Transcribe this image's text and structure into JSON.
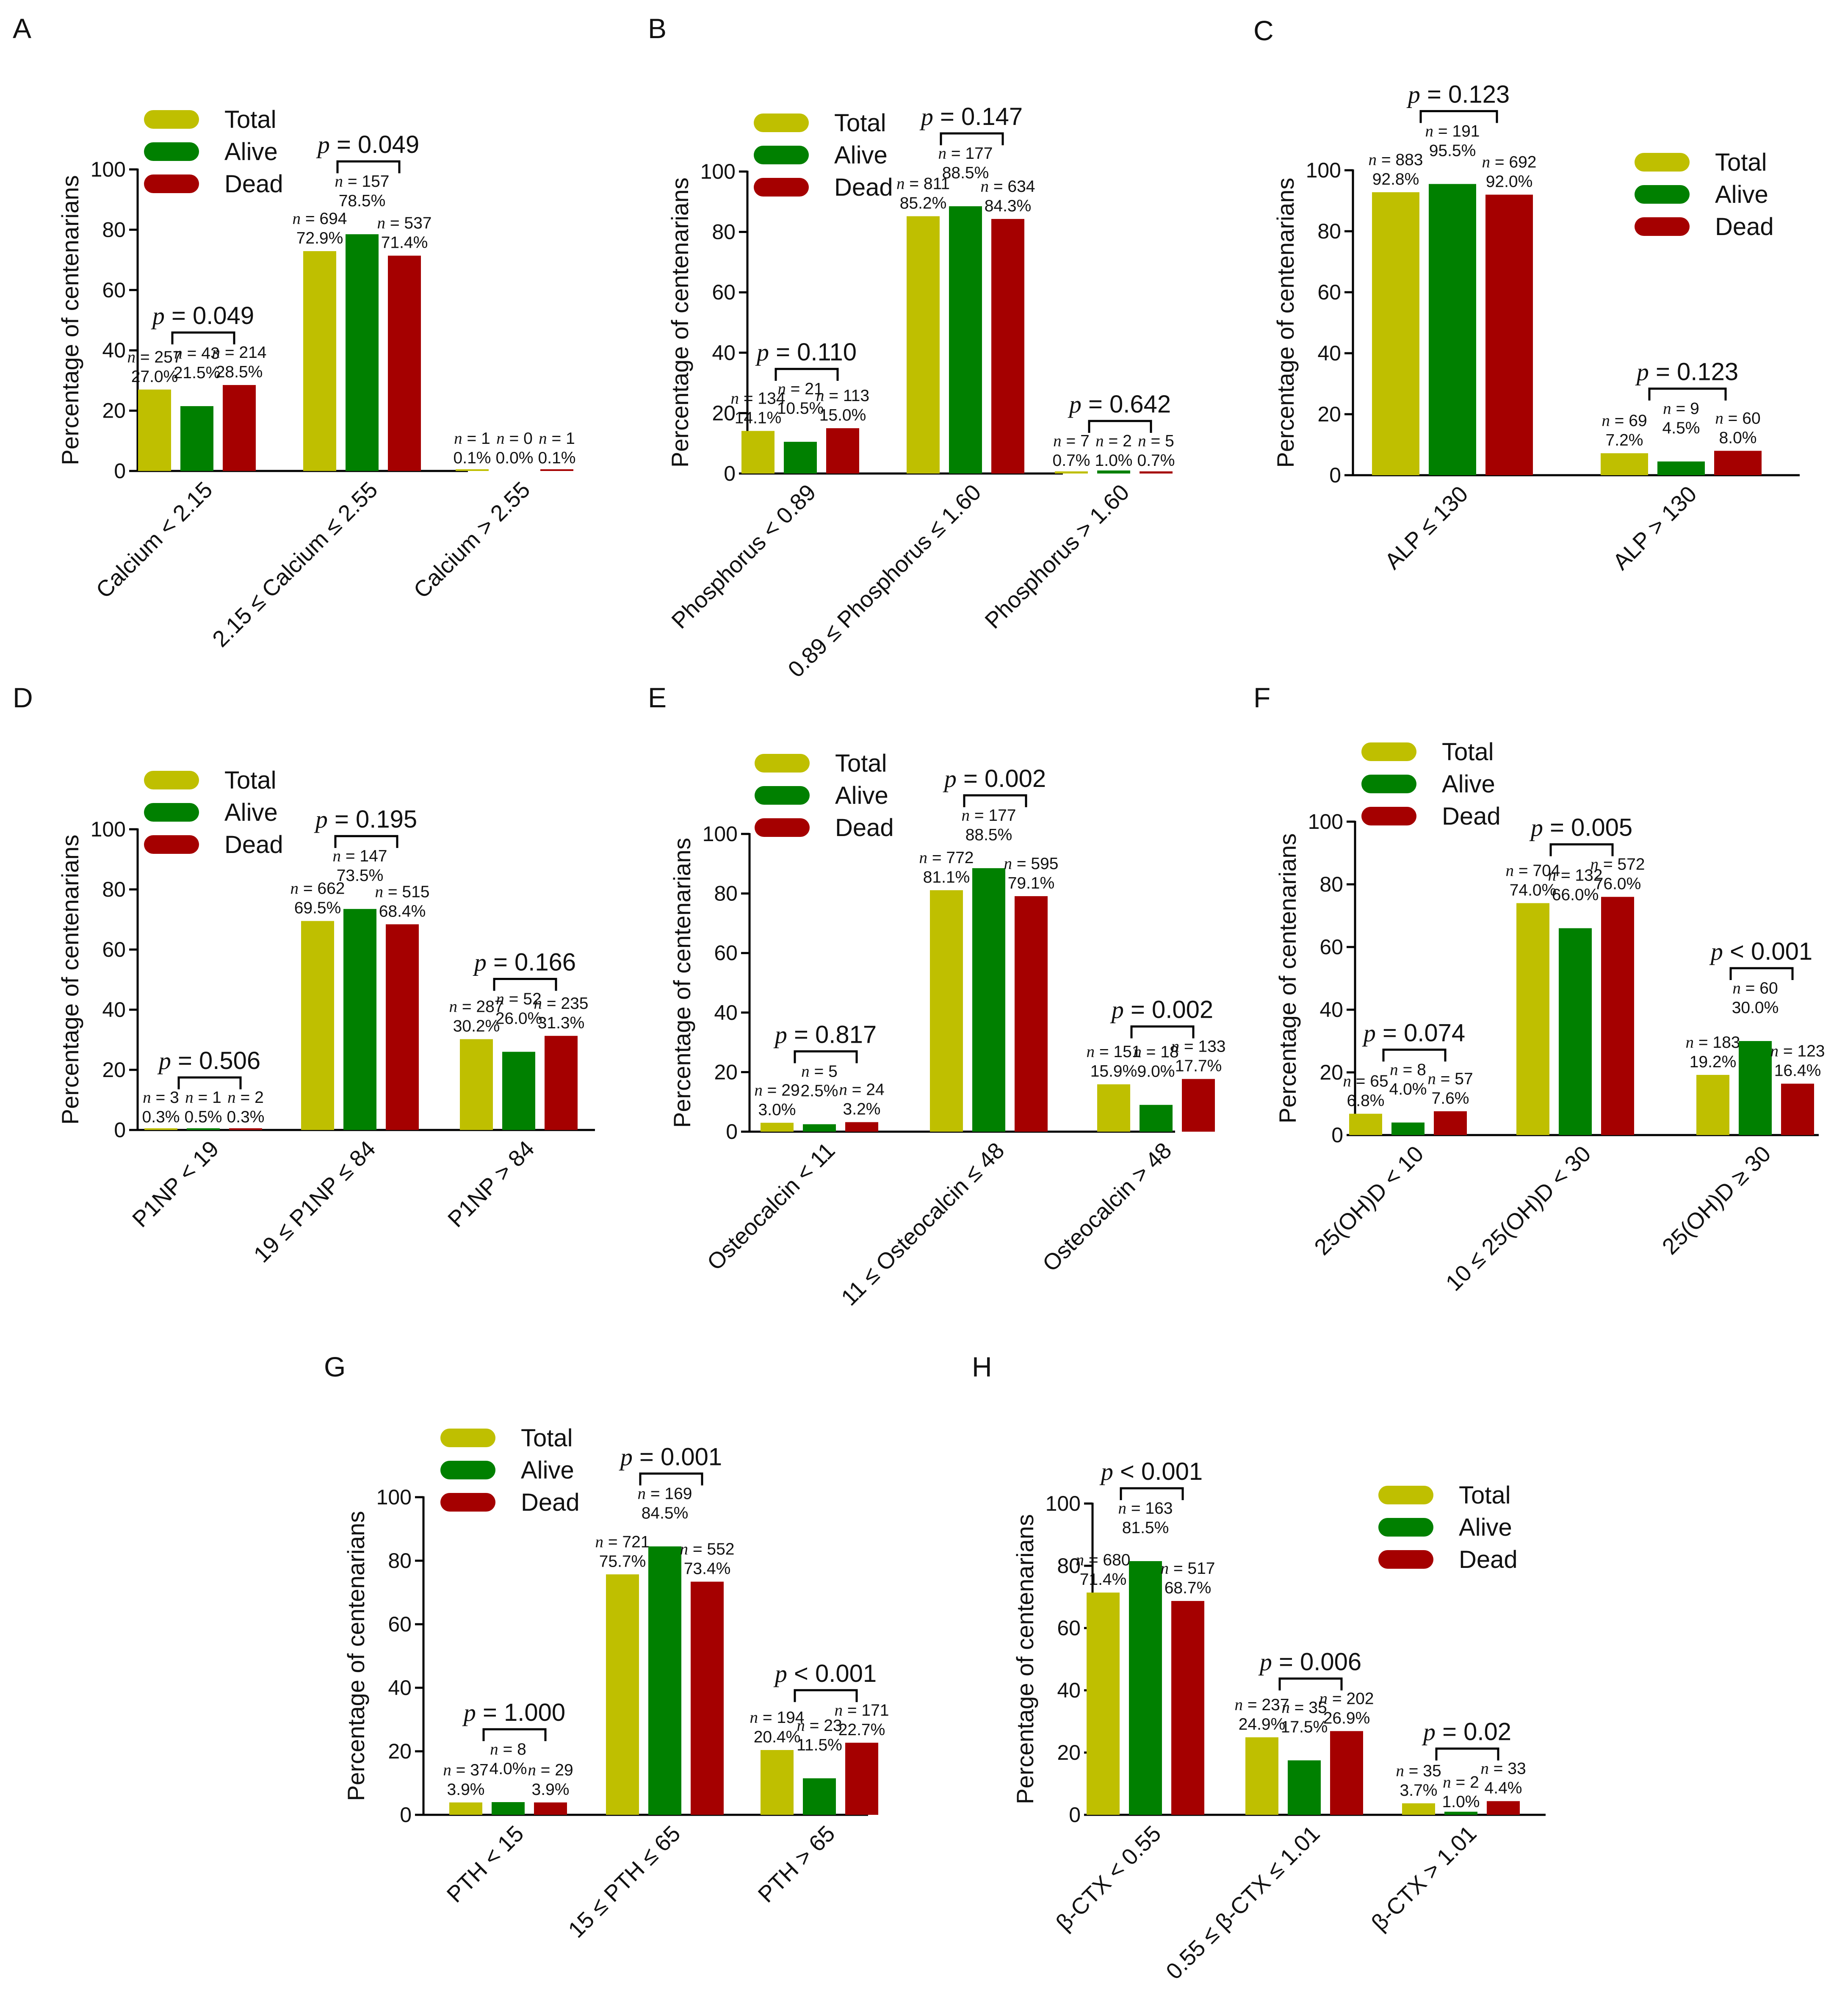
{
  "colors": {
    "Total": "#bfbf00",
    "Alive": "#008000",
    "Dead": "#a50000"
  },
  "series_names": [
    "Total",
    "Alive",
    "Dead"
  ],
  "y_axis_title": "Percentage of centenarians",
  "y_ticks": [
    "0",
    "20",
    "40",
    "60",
    "80",
    "100"
  ],
  "chart_data": [
    {
      "panel": "A",
      "type": "bar",
      "ylabel": "Percentage of centenarians",
      "ylim": [
        0,
        100
      ],
      "legend": "top-left",
      "categories": [
        "Calcium < 2.15",
        "2.15 ≤ Calcium ≤ 2.55",
        "Calcium > 2.55"
      ],
      "series": [
        {
          "name": "Total",
          "values": [
            27.0,
            72.9,
            0.1
          ],
          "n": [
            257,
            694,
            1
          ],
          "labels": [
            "27.0%",
            "72.9%",
            "0.1%"
          ]
        },
        {
          "name": "Alive",
          "values": [
            21.5,
            78.5,
            0.0
          ],
          "n": [
            43,
            157,
            0
          ],
          "labels": [
            "21.5%",
            "78.5%",
            "0.0%"
          ]
        },
        {
          "name": "Dead",
          "values": [
            28.5,
            71.4,
            0.1
          ],
          "n": [
            214,
            537,
            1
          ],
          "labels": [
            "28.5%",
            "71.4%",
            "0.1%"
          ]
        }
      ],
      "p_values": [
        "= 0.049",
        "= 0.049",
        null
      ]
    },
    {
      "panel": "B",
      "type": "bar",
      "ylabel": "Percentage of centenarians",
      "ylim": [
        0,
        100
      ],
      "legend": "top-left",
      "categories": [
        "Phosphorus < 0.89",
        "0.89 ≤ Phosphorus ≤ 1.60",
        "Phosphorus > 1.60"
      ],
      "series": [
        {
          "name": "Total",
          "values": [
            14.1,
            85.2,
            0.7
          ],
          "n": [
            134,
            811,
            7
          ],
          "labels": [
            "14.1%",
            "85.2%",
            "0.7%"
          ]
        },
        {
          "name": "Alive",
          "values": [
            10.5,
            88.5,
            1.0
          ],
          "n": [
            21,
            177,
            2
          ],
          "labels": [
            "10.5%",
            "88.5%",
            "1.0%"
          ]
        },
        {
          "name": "Dead",
          "values": [
            15.0,
            84.3,
            0.7
          ],
          "n": [
            113,
            634,
            5
          ],
          "labels": [
            "15.0%",
            "84.3%",
            "0.7%"
          ]
        }
      ],
      "p_values": [
        "= 0.110",
        "= 0.147",
        "= 0.642"
      ]
    },
    {
      "panel": "C",
      "type": "bar",
      "ylabel": "Percentage of centenarians",
      "ylim": [
        0,
        100
      ],
      "legend": "top-right",
      "categories": [
        "ALP ≤ 130",
        "ALP > 130"
      ],
      "series": [
        {
          "name": "Total",
          "values": [
            92.8,
            7.2
          ],
          "n": [
            883,
            69
          ],
          "labels": [
            "92.8%",
            "7.2%"
          ]
        },
        {
          "name": "Alive",
          "values": [
            95.5,
            4.5
          ],
          "n": [
            191,
            9
          ],
          "labels": [
            "95.5%",
            "4.5%"
          ]
        },
        {
          "name": "Dead",
          "values": [
            92.0,
            8.0
          ],
          "n": [
            692,
            60
          ],
          "labels": [
            "92.0%",
            "8.0%"
          ]
        }
      ],
      "p_values": [
        "= 0.123",
        "= 0.123"
      ]
    },
    {
      "panel": "D",
      "type": "bar",
      "ylabel": "Percentage of centenarians",
      "ylim": [
        0,
        100
      ],
      "legend": "top-left",
      "categories": [
        "P1NP < 19",
        "19 ≤ P1NP ≤ 84",
        "P1NP > 84"
      ],
      "series": [
        {
          "name": "Total",
          "values": [
            0.3,
            69.5,
            30.2
          ],
          "n": [
            3,
            662,
            287
          ],
          "labels": [
            "0.3%",
            "69.5%",
            "30.2%"
          ]
        },
        {
          "name": "Alive",
          "values": [
            0.5,
            73.5,
            26.0
          ],
          "n": [
            1,
            147,
            52
          ],
          "labels": [
            "0.5%",
            "73.5%",
            "26.0%"
          ]
        },
        {
          "name": "Dead",
          "values": [
            0.3,
            68.4,
            31.3
          ],
          "n": [
            2,
            515,
            235
          ],
          "labels": [
            "0.3%",
            "68.4%",
            "31.3%"
          ]
        }
      ],
      "p_values": [
        "= 0.506",
        "= 0.195",
        "= 0.166"
      ]
    },
    {
      "panel": "E",
      "type": "bar",
      "ylabel": "Percentage of centenarians",
      "ylim": [
        0,
        100
      ],
      "legend": "top-left",
      "categories": [
        "Osteocalcin < 11",
        "11 ≤ Osteocalcin ≤ 48",
        "Osteocalcin > 48"
      ],
      "series": [
        {
          "name": "Total",
          "values": [
            3.0,
            81.1,
            15.9
          ],
          "n": [
            29,
            772,
            151
          ],
          "labels": [
            "3.0%",
            "81.1%",
            "15.9%"
          ]
        },
        {
          "name": "Alive",
          "values": [
            2.5,
            88.5,
            9.0
          ],
          "n": [
            5,
            177,
            18
          ],
          "labels": [
            "2.5%",
            "88.5%",
            "9.0%"
          ]
        },
        {
          "name": "Dead",
          "values": [
            3.2,
            79.1,
            17.7
          ],
          "n": [
            24,
            595,
            133
          ],
          "labels": [
            "3.2%",
            "79.1%",
            "17.7%"
          ]
        }
      ],
      "p_values": [
        "= 0.817",
        "= 0.002",
        "= 0.002"
      ]
    },
    {
      "panel": "F",
      "type": "bar",
      "ylabel": "Percentage of centenarians",
      "ylim": [
        0,
        100
      ],
      "legend": "top-left",
      "categories": [
        "25(OH)D < 10",
        "10 ≤ 25(OH)D < 30",
        "25(OH)D ≥ 30"
      ],
      "series": [
        {
          "name": "Total",
          "values": [
            6.8,
            74.0,
            19.2
          ],
          "n": [
            65,
            704,
            183
          ],
          "labels": [
            "6.8%",
            "74.0%",
            "19.2%"
          ]
        },
        {
          "name": "Alive",
          "values": [
            4.0,
            66.0,
            30.0
          ],
          "n": [
            8,
            132,
            60
          ],
          "labels": [
            "4.0%",
            "66.0%",
            "30.0%"
          ]
        },
        {
          "name": "Dead",
          "values": [
            7.6,
            76.0,
            16.4
          ],
          "n": [
            57,
            572,
            123
          ],
          "labels": [
            "7.6%",
            "76.0%",
            "16.4%"
          ]
        }
      ],
      "p_values": [
        "= 0.074",
        "= 0.005",
        "< 0.001"
      ]
    },
    {
      "panel": "G",
      "type": "bar",
      "ylabel": "Percentage of centenarians",
      "ylim": [
        0,
        100
      ],
      "legend": "top-left",
      "categories": [
        "PTH < 15",
        "15 ≤ PTH ≤ 65",
        "PTH > 65"
      ],
      "series": [
        {
          "name": "Total",
          "values": [
            3.9,
            75.7,
            20.4
          ],
          "n": [
            37,
            721,
            194
          ],
          "labels": [
            "3.9%",
            "75.7%",
            "20.4%"
          ]
        },
        {
          "name": "Alive",
          "values": [
            4.0,
            84.5,
            11.5
          ],
          "n": [
            8,
            169,
            23
          ],
          "labels": [
            "4.0%",
            "84.5%",
            "11.5%"
          ]
        },
        {
          "name": "Dead",
          "values": [
            3.9,
            73.4,
            22.7
          ],
          "n": [
            29,
            552,
            171
          ],
          "labels": [
            "3.9%",
            "73.4%",
            "22.7%"
          ]
        }
      ],
      "p_values": [
        "= 1.000",
        "= 0.001",
        "< 0.001"
      ]
    },
    {
      "panel": "H",
      "type": "bar",
      "ylabel": "Percentage of centenarians",
      "ylim": [
        0,
        100
      ],
      "legend": "top-right",
      "categories": [
        "β-CTX < 0.55",
        "0.55 ≤ β-CTX ≤ 1.01",
        "β-CTX > 1.01"
      ],
      "series": [
        {
          "name": "Total",
          "values": [
            71.4,
            24.9,
            3.7
          ],
          "n": [
            680,
            237,
            35
          ],
          "labels": [
            "71.4%",
            "24.9%",
            "3.7%"
          ]
        },
        {
          "name": "Alive",
          "values": [
            81.5,
            17.5,
            1.0
          ],
          "n": [
            163,
            35,
            2
          ],
          "labels": [
            "81.5%",
            "17.5%",
            "1.0%"
          ]
        },
        {
          "name": "Dead",
          "values": [
            68.7,
            26.9,
            4.4
          ],
          "n": [
            517,
            202,
            33
          ],
          "labels": [
            "68.7%",
            "26.9%",
            "4.4%"
          ]
        }
      ],
      "p_values": [
        "< 0.001",
        "= 0.006",
        "= 0.02"
      ]
    }
  ]
}
